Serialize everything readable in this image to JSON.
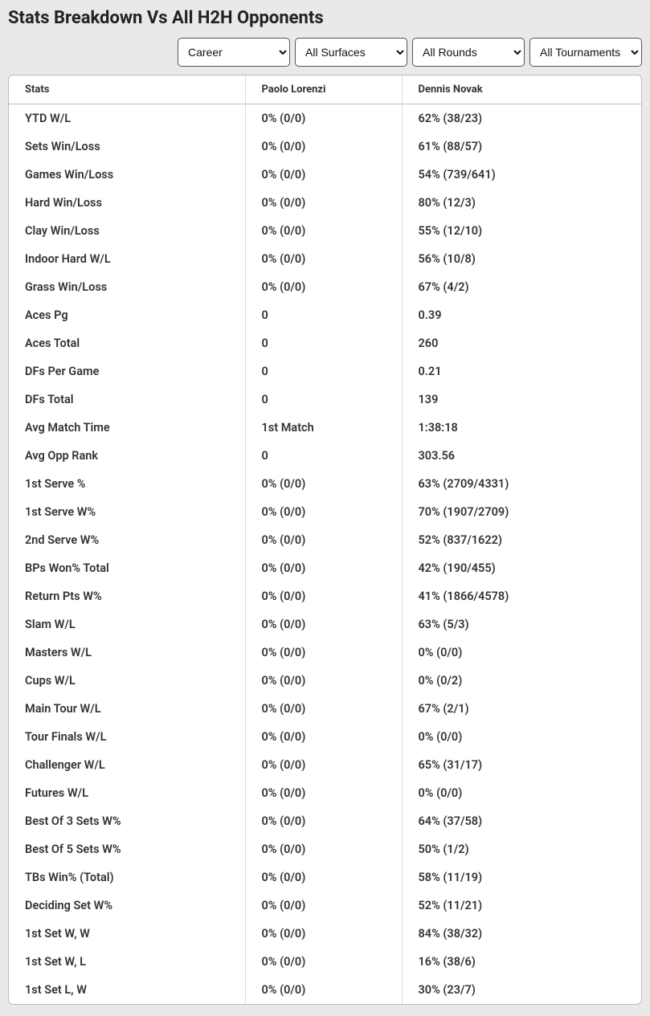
{
  "title": "Stats Breakdown Vs All H2H Opponents",
  "filters": {
    "career": {
      "selected": "Career"
    },
    "surfaces": {
      "selected": "All Surfaces"
    },
    "rounds": {
      "selected": "All Rounds"
    },
    "tournaments": {
      "selected": "All Tournaments"
    }
  },
  "columns": {
    "stats": "Stats",
    "p1": "Paolo Lorenzi",
    "p2": "Dennis Novak"
  },
  "rows": [
    {
      "stat": "YTD W/L",
      "p1": "0% (0/0)",
      "p2": "62% (38/23)"
    },
    {
      "stat": "Sets Win/Loss",
      "p1": "0% (0/0)",
      "p2": "61% (88/57)"
    },
    {
      "stat": "Games Win/Loss",
      "p1": "0% (0/0)",
      "p2": "54% (739/641)"
    },
    {
      "stat": "Hard Win/Loss",
      "p1": "0% (0/0)",
      "p2": "80% (12/3)"
    },
    {
      "stat": "Clay Win/Loss",
      "p1": "0% (0/0)",
      "p2": "55% (12/10)"
    },
    {
      "stat": "Indoor Hard W/L",
      "p1": "0% (0/0)",
      "p2": "56% (10/8)"
    },
    {
      "stat": "Grass Win/Loss",
      "p1": "0% (0/0)",
      "p2": "67% (4/2)"
    },
    {
      "stat": "Aces Pg",
      "p1": "0",
      "p2": "0.39"
    },
    {
      "stat": "Aces Total",
      "p1": "0",
      "p2": "260"
    },
    {
      "stat": "DFs Per Game",
      "p1": "0",
      "p2": "0.21"
    },
    {
      "stat": "DFs Total",
      "p1": "0",
      "p2": "139"
    },
    {
      "stat": "Avg Match Time",
      "p1": "1st Match",
      "p2": "1:38:18"
    },
    {
      "stat": "Avg Opp Rank",
      "p1": "0",
      "p2": "303.56"
    },
    {
      "stat": "1st Serve %",
      "p1": "0% (0/0)",
      "p2": "63% (2709/4331)"
    },
    {
      "stat": "1st Serve W%",
      "p1": "0% (0/0)",
      "p2": "70% (1907/2709)"
    },
    {
      "stat": "2nd Serve W%",
      "p1": "0% (0/0)",
      "p2": "52% (837/1622)"
    },
    {
      "stat": "BPs Won% Total",
      "p1": "0% (0/0)",
      "p2": "42% (190/455)"
    },
    {
      "stat": "Return Pts W%",
      "p1": "0% (0/0)",
      "p2": "41% (1866/4578)"
    },
    {
      "stat": "Slam W/L",
      "p1": "0% (0/0)",
      "p2": "63% (5/3)"
    },
    {
      "stat": "Masters W/L",
      "p1": "0% (0/0)",
      "p2": "0% (0/0)"
    },
    {
      "stat": "Cups W/L",
      "p1": "0% (0/0)",
      "p2": "0% (0/2)"
    },
    {
      "stat": "Main Tour W/L",
      "p1": "0% (0/0)",
      "p2": "67% (2/1)"
    },
    {
      "stat": "Tour Finals W/L",
      "p1": "0% (0/0)",
      "p2": "0% (0/0)"
    },
    {
      "stat": "Challenger W/L",
      "p1": "0% (0/0)",
      "p2": "65% (31/17)"
    },
    {
      "stat": "Futures W/L",
      "p1": "0% (0/0)",
      "p2": "0% (0/0)"
    },
    {
      "stat": "Best Of 3 Sets W%",
      "p1": "0% (0/0)",
      "p2": "64% (37/58)"
    },
    {
      "stat": "Best Of 5 Sets W%",
      "p1": "0% (0/0)",
      "p2": "50% (1/2)"
    },
    {
      "stat": "TBs Win% (Total)",
      "p1": "0% (0/0)",
      "p2": "58% (11/19)"
    },
    {
      "stat": "Deciding Set W%",
      "p1": "0% (0/0)",
      "p2": "52% (11/21)"
    },
    {
      "stat": "1st Set W, W",
      "p1": "0% (0/0)",
      "p2": "84% (38/32)"
    },
    {
      "stat": "1st Set W, L",
      "p1": "0% (0/0)",
      "p2": "16% (38/6)"
    },
    {
      "stat": "1st Set L, W",
      "p1": "0% (0/0)",
      "p2": "30% (23/7)"
    }
  ]
}
